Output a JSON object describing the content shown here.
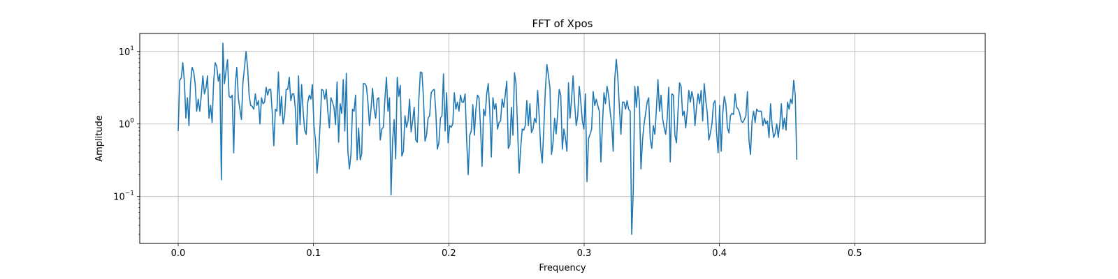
{
  "chart_data": {
    "type": "line",
    "title": "FFT of Xpos",
    "xlabel": "Frequency",
    "ylabel": "Amplitude",
    "yscale": "log",
    "grid": true,
    "xlim": [
      -0.0284,
      0.5964
    ],
    "ylim": [
      0.0225,
      17.7
    ],
    "x_ticks": [
      {
        "value": 0.0,
        "label": "0.0"
      },
      {
        "value": 0.1,
        "label": "0.1"
      },
      {
        "value": 0.2,
        "label": "0.2"
      },
      {
        "value": 0.3,
        "label": "0.3"
      },
      {
        "value": 0.4,
        "label": "0.4"
      },
      {
        "value": 0.5,
        "label": "0.5"
      }
    ],
    "y_ticks": [
      {
        "value": 0.1,
        "base": "10",
        "exp": "−1"
      },
      {
        "value": 1,
        "base": "10",
        "exp": "0"
      },
      {
        "value": 10,
        "base": "10",
        "exp": "1"
      }
    ],
    "line_color": "#1f77b4",
    "grid_color": "#b0b0b0",
    "series": [
      {
        "x_start": 0.0,
        "x_step": 0.00114,
        "values": [
          0.8,
          4.0,
          4.3,
          7.0,
          3.9,
          1.2,
          2.3,
          0.95,
          3.6,
          6.0,
          5.3,
          3.6,
          1.5,
          2.2,
          1.5,
          2.5,
          4.6,
          2.6,
          3.1,
          4.6,
          1.2,
          1.8,
          1.05,
          3.9,
          7.0,
          6.2,
          3.9,
          4.9,
          0.17,
          13.0,
          3.6,
          5.4,
          7.7,
          2.4,
          2.3,
          2.5,
          0.4,
          3.4,
          6.0,
          2.3,
          1.6,
          1.15,
          3.8,
          6.0,
          10.0,
          6.0,
          2.5,
          1.8,
          1.75,
          1.6,
          2.6,
          1.8,
          2.1,
          1.0,
          2.3,
          1.9,
          2.0,
          3.2,
          2.5,
          3.0,
          3.0,
          1.4,
          0.5,
          1.6,
          1.5,
          5.2,
          1.3,
          2.4,
          1.0,
          1.3,
          3.0,
          3.0,
          4.4,
          2.1,
          2.6,
          2.6,
          1.6,
          0.52,
          4.6,
          0.98,
          3.5,
          1.5,
          0.82,
          0.72,
          2.0,
          2.5,
          2.2,
          3.5,
          0.95,
          0.6,
          0.21,
          0.38,
          1.0,
          3.0,
          2.9,
          2.2,
          3.0,
          1.5,
          0.88,
          2.3,
          2.0,
          1.7,
          0.98,
          3.8,
          0.56,
          1.9,
          1.4,
          4.1,
          0.8,
          5.0,
          0.42,
          0.24,
          0.38,
          1.6,
          1.5,
          2.5,
          0.32,
          0.88,
          0.32,
          0.39,
          3.6,
          3.6,
          3.3,
          2.0,
          0.95,
          1.6,
          3.1,
          1.6,
          1.2,
          2.2,
          2.3,
          0.6,
          0.85,
          0.9,
          2.2,
          4.4,
          1.5,
          2.3,
          0.105,
          0.6,
          1.15,
          0.33,
          4.4,
          2.4,
          3.4,
          0.36,
          0.42,
          1.3,
          0.9,
          1.1,
          2.2,
          0.78,
          1.1,
          1.7,
          0.6,
          0.56,
          2.2,
          5.2,
          5.1,
          2.3,
          0.58,
          0.7,
          1.2,
          1.3,
          2.7,
          2.9,
          3.0,
          1.5,
          0.45,
          0.55,
          1.2,
          1.3,
          4.9,
          0.8,
          2.7,
          0.55,
          0.95,
          0.9,
          1.0,
          2.7,
          1.6,
          2.0,
          1.5,
          2.5,
          2.0,
          2.0,
          2.6,
          0.6,
          0.2,
          0.7,
          0.8,
          1.85,
          0.7,
          1.6,
          2.5,
          2.3,
          0.88,
          0.26,
          1.6,
          1.3,
          2.6,
          3.6,
          1.5,
          0.35,
          2.3,
          1.6,
          1.9,
          0.85,
          1.05,
          1.1,
          2.2,
          1.7,
          2.5,
          3.9,
          0.46,
          0.52,
          1.7,
          0.7,
          5.1,
          3.6,
          0.9,
          0.21,
          0.46,
          0.85,
          0.82,
          0.95,
          2.1,
          0.95,
          1.9,
          0.76,
          0.85,
          1.2,
          1.05,
          2.9,
          1.3,
          0.45,
          0.29,
          0.85,
          2.9,
          6.6,
          4.7,
          3.1,
          0.38,
          0.55,
          1.2,
          0.73,
          1.4,
          3.0,
          2.5,
          0.45,
          0.85,
          0.65,
          0.42,
          3.7,
          1.2,
          2.2,
          4.6,
          1.9,
          0.95,
          1.3,
          3.3,
          2.0,
          1.1,
          0.85,
          2.6,
          0.16,
          0.63,
          0.72,
          0.85,
          2.8,
          1.8,
          2.2,
          1.8,
          1.5,
          0.3,
          0.95,
          2.7,
          1.9,
          3.3,
          2.5,
          1.5,
          1.0,
          0.42,
          4.2,
          7.8,
          4.3,
          1.7,
          0.72,
          2.0,
          2.0,
          1.6,
          2.1,
          1.6,
          1.5,
          0.03,
          0.12,
          3.3,
          1.7,
          3.3,
          2.0,
          0.24,
          0.6,
          1.0,
          1.4,
          2.0,
          2.3,
          0.62,
          0.46,
          0.95,
          0.72,
          1.6,
          4.1,
          1.5,
          2.5,
          1.2,
          0.9,
          0.72,
          1.2,
          3.2,
          0.3,
          2.6,
          2.5,
          0.7,
          0.55,
          1.5,
          3.7,
          3.3,
          1.3,
          1.5,
          0.88,
          1.5,
          2.9,
          2.0,
          2.8,
          2.2,
          0.95,
          1.7,
          2.6,
          1.9,
          2.9,
          1.1,
          3.6,
          2.1,
          1.4,
          0.6,
          0.75,
          1.0,
          1.9,
          2.1,
          0.75,
          0.4,
          1.8,
          0.42,
          1.4,
          2.4,
          1.9,
          0.9,
          0.75,
          1.3,
          1.4,
          1.35,
          2.6,
          1.7,
          1.6,
          1.4,
          1.1,
          1.05,
          1.15,
          1.3,
          2.8,
          0.6,
          0.38,
          1.1,
          1.5,
          1.05,
          1.6,
          1.5,
          1.5,
          1.5,
          0.95,
          1.2,
          1.0,
          1.1,
          0.65,
          1.9,
          0.95,
          0.65,
          0.75,
          1.0,
          0.65,
          1.0,
          1.9,
          0.85,
          1.2,
          0.82,
          2.0,
          1.6,
          2.2,
          1.9,
          4.0,
          2.5,
          0.32
        ]
      }
    ]
  }
}
